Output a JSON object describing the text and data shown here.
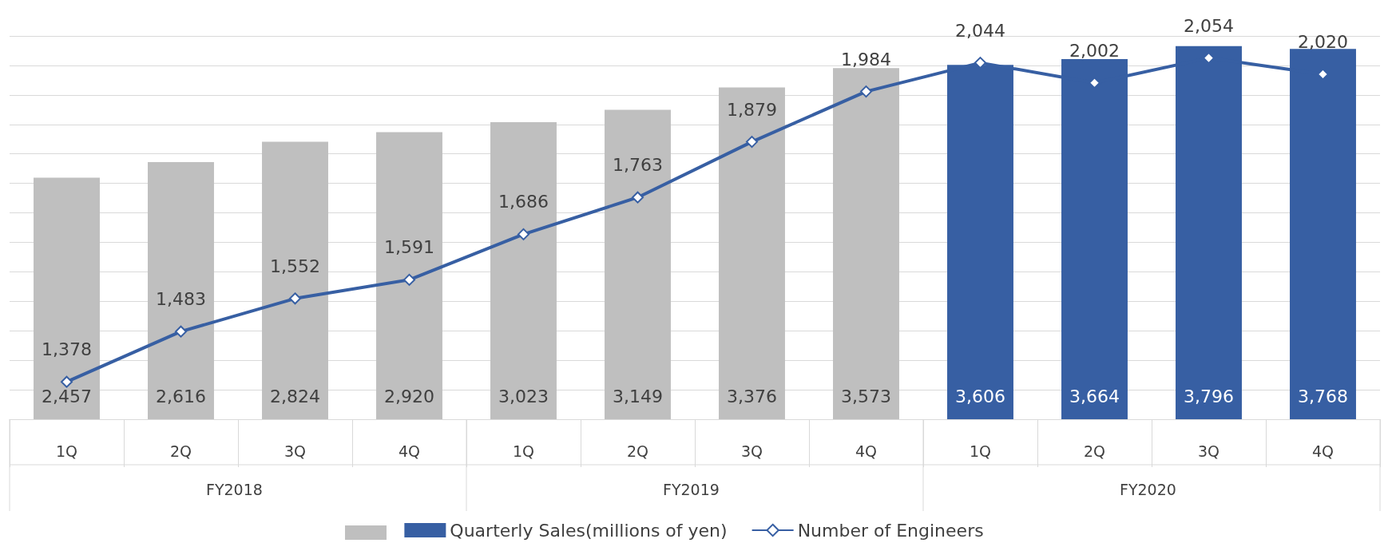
{
  "chart_data": {
    "type": "bar",
    "categories": [
      "1Q",
      "2Q",
      "3Q",
      "4Q",
      "1Q",
      "2Q",
      "3Q",
      "4Q",
      "1Q",
      "2Q",
      "3Q",
      "4Q"
    ],
    "series": [
      {
        "name": "Quarterly Sales(millions of yen)",
        "color": "#375fa3",
        "colors": [
          "#bfbfbf",
          "#bfbfbf",
          "#bfbfbf",
          "#bfbfbf",
          "#bfbfbf",
          "#bfbfbf",
          "#bfbfbf",
          "#bfbfbf",
          "#375fa3",
          "#375fa3",
          "#375fa3",
          "#375fa3"
        ],
        "values": [
          2457,
          2616,
          2824,
          2920,
          3023,
          3149,
          3376,
          3573,
          3606,
          3664,
          3796,
          3768
        ],
        "value_labels": [
          "2,457",
          "2,616",
          "2,824",
          "2,920",
          "3,023",
          "3,149",
          "3,376",
          "3,573",
          "3,606",
          "3,664",
          "3,796",
          "3,768"
        ]
      },
      {
        "name": "Number of Engineers",
        "type": "line",
        "axis": "y2",
        "color": "#375fa3",
        "marker": "diamond",
        "values": [
          1378,
          1483,
          1552,
          1591,
          1686,
          1763,
          1879,
          1984,
          2044,
          2002,
          2054,
          2020
        ],
        "value_labels": [
          "1,378",
          "1,483",
          "1,552",
          "1,591",
          "1,686",
          "1,763",
          "1,879",
          "1,984",
          "2,044",
          "2,002",
          "2,054",
          "2,020"
        ]
      }
    ],
    "annotations": [
      "FY2018",
      "FY2019",
      "FY2020"
    ],
    "tick_labels": "x",
    "grid": "y",
    "legend": "bottom"
  }
}
